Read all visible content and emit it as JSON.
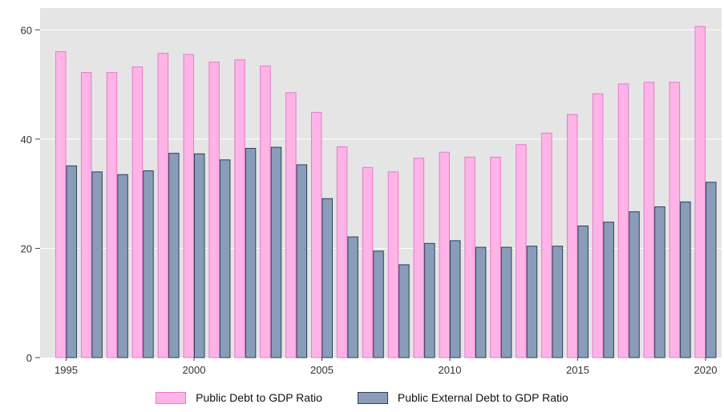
{
  "chart_data": {
    "type": "bar",
    "title": "",
    "xlabel": "",
    "ylabel": "",
    "categories": [
      "1995",
      "1996",
      "1997",
      "1998",
      "1999",
      "2000",
      "2001",
      "2002",
      "2003",
      "2004",
      "2005",
      "2006",
      "2007",
      "2008",
      "2009",
      "2010",
      "2011",
      "2012",
      "2013",
      "2014",
      "2015",
      "2016",
      "2017",
      "2018",
      "2019",
      "2020"
    ],
    "series": [
      {
        "name": "Public Debt to GDP Ratio",
        "color": "#ffb3e6",
        "stroke": "#e57bcd",
        "values": [
          56.0,
          52.2,
          52.2,
          53.2,
          55.7,
          55.5,
          54.1,
          54.5,
          53.4,
          48.5,
          44.9,
          38.6,
          34.8,
          34.0,
          36.5,
          37.6,
          36.7,
          36.7,
          39.0,
          41.1,
          44.5,
          48.3,
          50.1,
          50.4,
          50.4,
          60.6
        ]
      },
      {
        "name": "Public External Debt to GDP Ratio",
        "color": "#8a9db8",
        "stroke": "#2e3e5c",
        "values": [
          35.1,
          34.0,
          33.5,
          34.2,
          37.4,
          37.3,
          36.2,
          38.3,
          38.5,
          35.3,
          29.1,
          22.1,
          19.5,
          17.0,
          20.9,
          21.4,
          20.2,
          20.2,
          20.4,
          20.4,
          24.1,
          24.8,
          26.7,
          27.6,
          28.5,
          32.1
        ]
      }
    ],
    "ylim": [
      0,
      64
    ],
    "y_ticks": [
      "0",
      "20",
      "40",
      "60"
    ],
    "x_tick_labels": [
      "1995",
      "2000",
      "2005",
      "2010",
      "2015",
      "2020"
    ],
    "background": "#e5e5e5",
    "grid": true,
    "legend_position": "bottom"
  }
}
